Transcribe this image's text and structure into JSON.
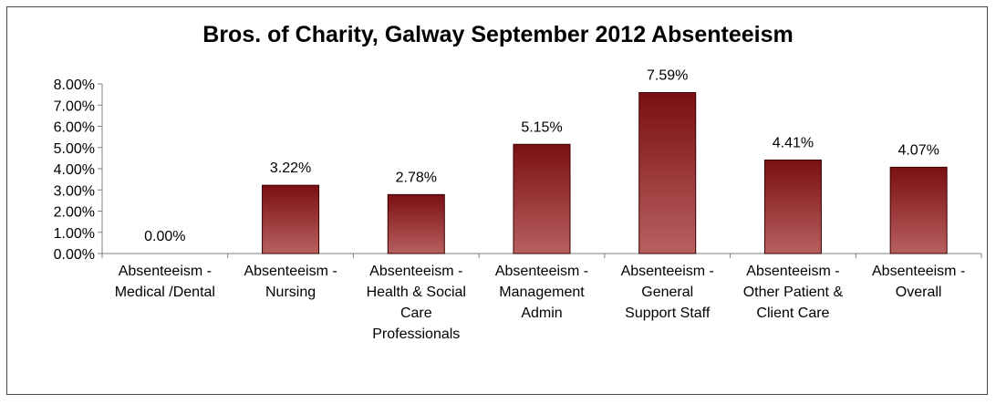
{
  "chart_data": {
    "type": "bar",
    "title": "Bros. of Charity, Galway September 2012 Absenteeism",
    "xlabel": "",
    "ylabel": "",
    "ylim": [
      0,
      0.08
    ],
    "y_ticks": [
      "0.00%",
      "1.00%",
      "2.00%",
      "3.00%",
      "4.00%",
      "5.00%",
      "6.00%",
      "7.00%",
      "8.00%"
    ],
    "categories": [
      [
        "Absenteeism -",
        "Medical /Dental"
      ],
      [
        "Absenteeism -",
        "Nursing"
      ],
      [
        "Absenteeism -",
        "Health & Social",
        "Care",
        "Professionals"
      ],
      [
        "Absenteeism -",
        "Management",
        "Admin"
      ],
      [
        "Absenteeism -",
        "General",
        "Support Staff"
      ],
      [
        "Absenteeism -",
        "Other Patient &",
        "Client Care"
      ],
      [
        "Absenteeism -",
        "Overall"
      ]
    ],
    "values": [
      0.0,
      0.0322,
      0.0278,
      0.0515,
      0.0759,
      0.0441,
      0.0407
    ],
    "data_labels": [
      "0.00%",
      "3.22%",
      "2.78%",
      "5.15%",
      "7.59%",
      "4.41%",
      "4.07%"
    ],
    "grid": false,
    "legend": "none",
    "colors": {
      "bar_top": "#7a0f12",
      "bar_bottom": "#b86060",
      "bar_edge": "#3a0000",
      "axis": "#808080"
    }
  }
}
